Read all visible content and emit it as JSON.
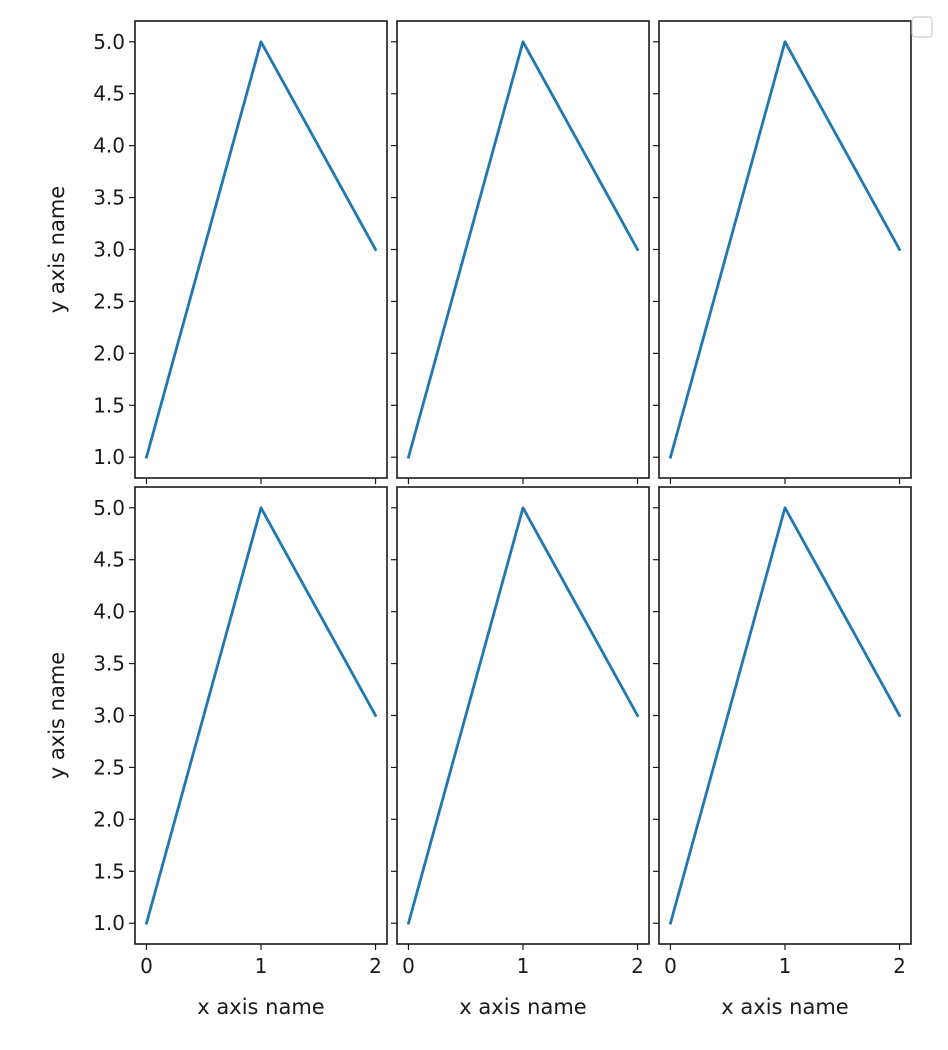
{
  "chart_data": {
    "type": "line",
    "layout": {
      "rows": 2,
      "cols": 3,
      "sharex": true,
      "sharey": true
    },
    "x": [
      0,
      1,
      2
    ],
    "y": [
      1,
      5,
      3
    ],
    "xticks": [
      "0",
      "1",
      "2"
    ],
    "yticks": [
      "1.0",
      "1.5",
      "2.0",
      "2.5",
      "3.0",
      "3.5",
      "4.0",
      "4.5",
      "5.0"
    ],
    "xlim": [
      -0.1,
      2.1
    ],
    "ylim": [
      0.8,
      5.2
    ],
    "xlabel": "x axis name",
    "ylabel": "y axis name",
    "line_color": "#1f77b4",
    "legend": {
      "placement": "top-right",
      "entries": []
    },
    "grid": false
  }
}
